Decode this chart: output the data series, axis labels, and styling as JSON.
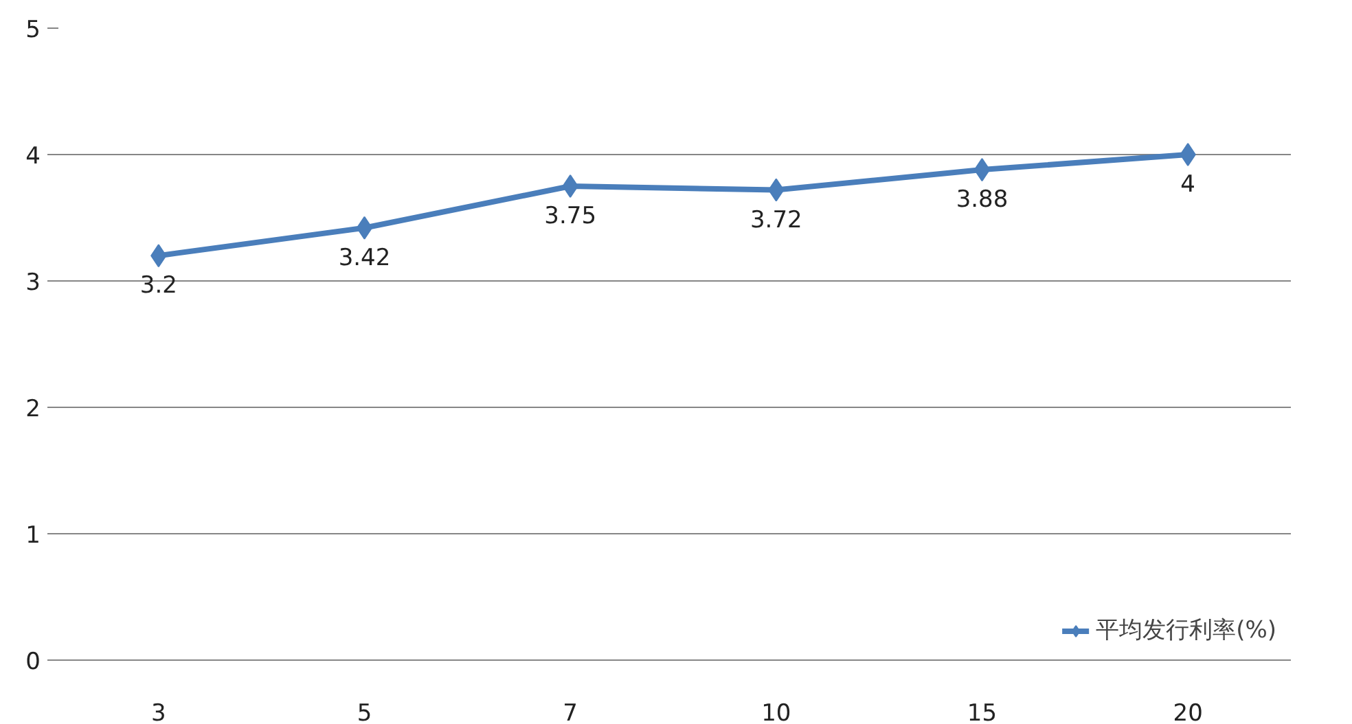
{
  "chart_data": {
    "type": "line",
    "categories": [
      "3",
      "5",
      "7",
      "10",
      "15",
      "20"
    ],
    "series": [
      {
        "name": "平均发行利率(%)",
        "color": "#4a7ebb",
        "values": [
          3.2,
          3.42,
          3.75,
          3.72,
          3.88,
          4
        ]
      }
    ],
    "ylim": [
      0,
      5
    ],
    "yticks": [
      0,
      1,
      2,
      3,
      4,
      5
    ],
    "grid": "y",
    "legend": "bottom right",
    "marker": "diamond",
    "line_style": "solid",
    "data_labels": true
  }
}
